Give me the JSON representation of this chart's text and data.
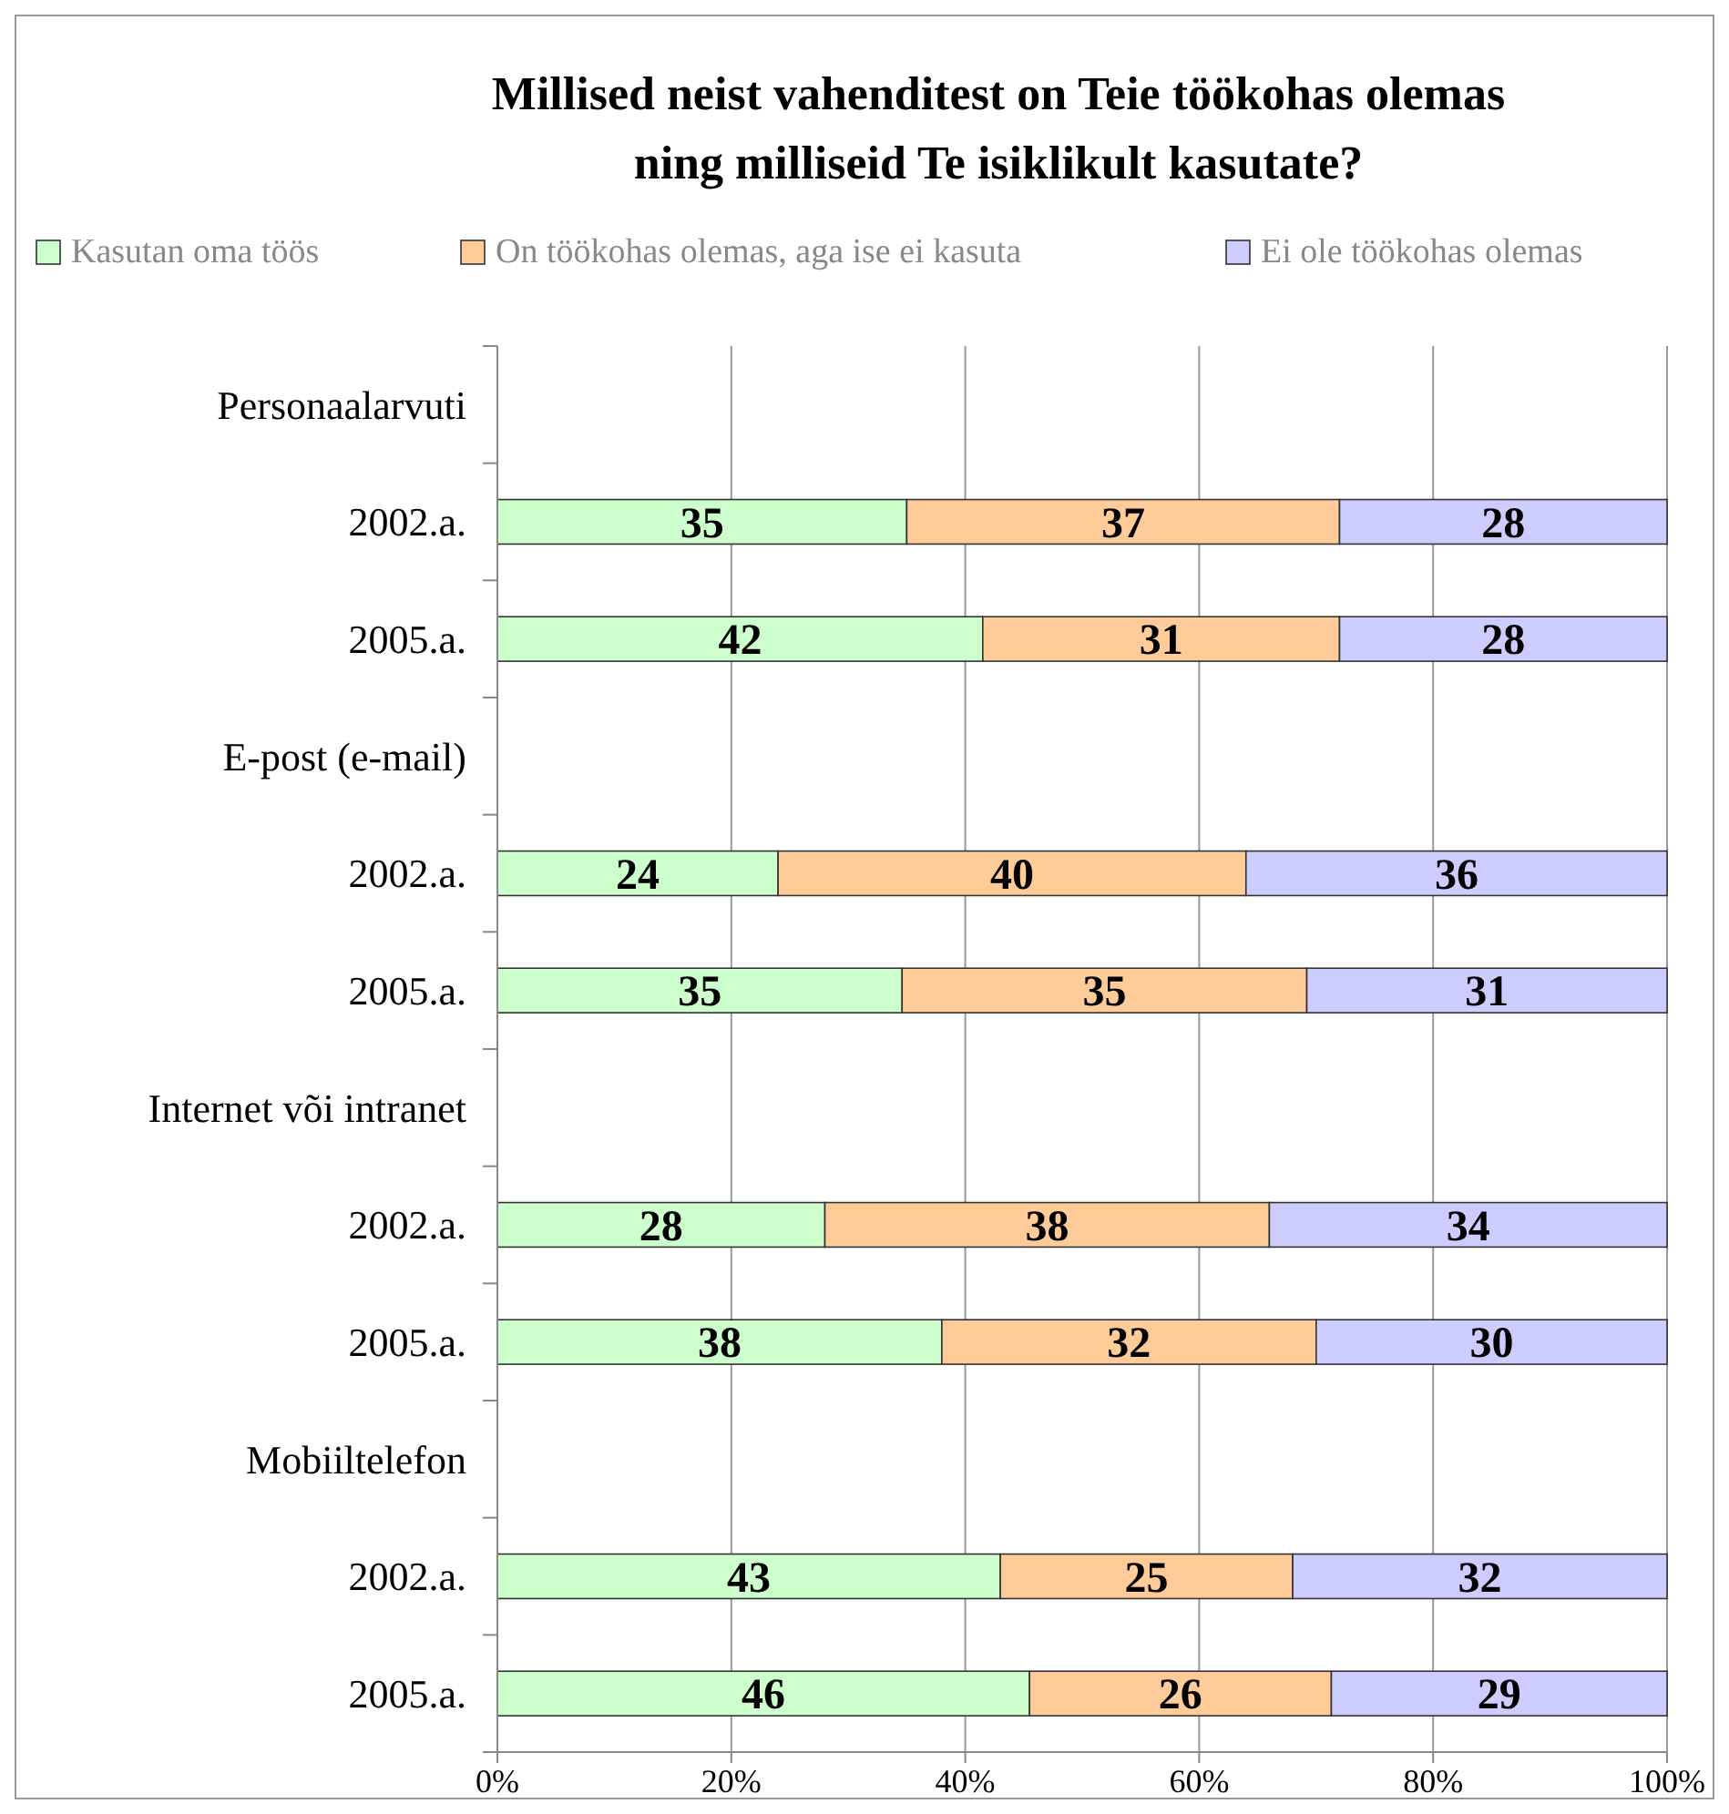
{
  "chart_data": {
    "type": "bar",
    "orientation": "horizontal",
    "stacked": true,
    "title": "Millised neist vahenditest on Teie töökohas olemas ning milliseid Te isiklikult kasutate?",
    "categories": [
      "Personaalarvuti",
      "2002.a.",
      "2005.a.",
      "E-post (e-mail)",
      "2002.a.",
      "2005.a.",
      "Internet või intranet",
      "2002.a.",
      "2005.a.",
      "Mobiiltelefon",
      "2002.a.",
      "2005.a."
    ],
    "series": [
      {
        "name": "Kasutan oma töös",
        "color": "#ccffcc",
        "values": [
          null,
          35,
          41.5,
          null,
          24,
          34.6,
          null,
          28,
          38,
          null,
          43,
          45.5
        ],
        "value_labels": [
          null,
          "35",
          "42",
          null,
          "24",
          "35",
          null,
          "28",
          "38",
          null,
          "43",
          "46"
        ]
      },
      {
        "name": "On töökohas olemas, aga ise ei kasuta",
        "color": "#ffcc99",
        "values": [
          null,
          37,
          30.5,
          null,
          40,
          34.6,
          null,
          38,
          32,
          null,
          25,
          25.8
        ],
        "value_labels": [
          null,
          "37",
          "31",
          null,
          "40",
          "35",
          null,
          "38",
          "32",
          null,
          "25",
          "26"
        ]
      },
      {
        "name": "Ei ole töökohas olemas",
        "color": "#ccccff",
        "values": [
          null,
          28,
          28,
          null,
          36,
          30.8,
          null,
          34,
          30,
          null,
          32,
          28.7
        ],
        "value_labels": [
          null,
          "28",
          "28",
          null,
          "36",
          "31",
          null,
          "34",
          "30",
          null,
          "32",
          "29"
        ]
      }
    ],
    "xlim": [
      0,
      100
    ],
    "xticks": [
      {
        "value": 0,
        "label": "0%"
      },
      {
        "value": 20,
        "label": "20%"
      },
      {
        "value": 40,
        "label": "40%"
      },
      {
        "value": 60,
        "label": "60%"
      },
      {
        "value": 80,
        "label": "80%"
      },
      {
        "value": 100,
        "label": "100%"
      }
    ],
    "grid": "x",
    "legend": "top"
  }
}
